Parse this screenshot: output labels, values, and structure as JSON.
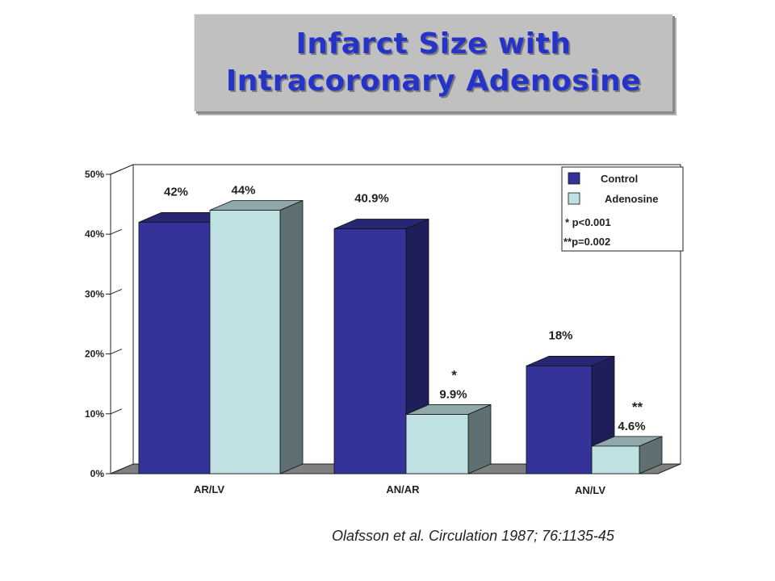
{
  "title": {
    "line1": "Infarct Size with",
    "line2": "Intracoronary Adenosine"
  },
  "citation": "Olafsson et al.  Circulation 1987; 76:1135-45",
  "colors": {
    "control_front": "#333399",
    "control_side": "#1e1e5a",
    "control_top": "#262673",
    "adenosine_front": "#bfe1e3",
    "adenosine_side": "#5f7073",
    "adenosine_top": "#8fa8a9",
    "floor": "#7f7f7f"
  },
  "chart_data": {
    "type": "bar",
    "categories": [
      "AR/LV",
      "AN/AR",
      "AN/LV"
    ],
    "series": [
      {
        "name": "Control",
        "values": [
          42,
          40.9,
          18
        ],
        "labels": [
          "42%",
          "40.9%",
          "18%"
        ]
      },
      {
        "name": "Adenosine",
        "values": [
          44,
          9.9,
          4.6
        ],
        "labels": [
          "44%",
          "9.9%",
          "4.6%"
        ]
      }
    ],
    "significance_marks": [
      "",
      "*",
      "**"
    ],
    "y_ticks": [
      "0%",
      "10%",
      "20%",
      "30%",
      "40%",
      "50%"
    ],
    "ylim": [
      0,
      50
    ],
    "legend": {
      "placement": "top-right",
      "entries": [
        "Control",
        "Adenosine"
      ],
      "notes": [
        "* p<0.001",
        "**p=0.002"
      ]
    },
    "grid": false
  }
}
